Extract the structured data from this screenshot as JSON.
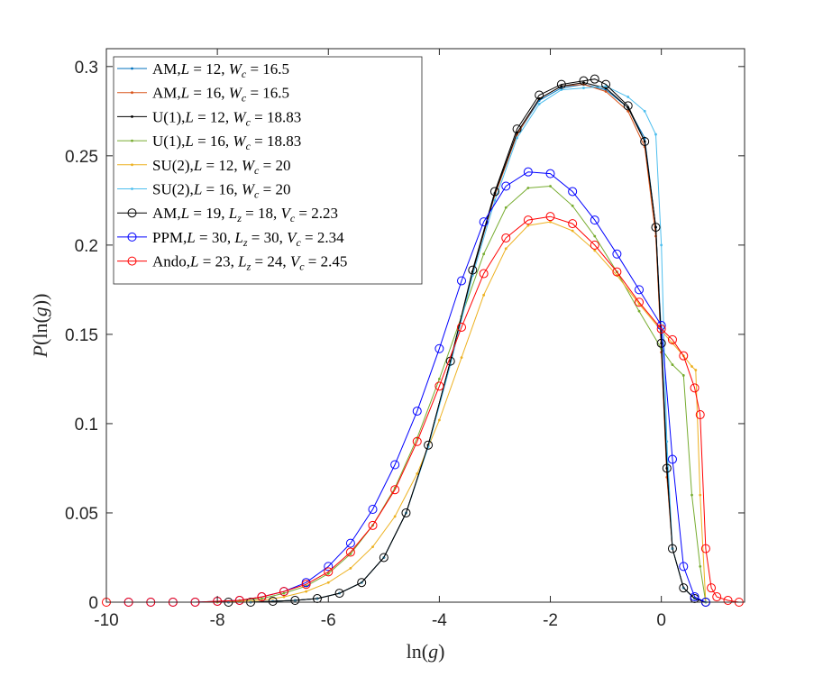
{
  "chart_data": {
    "type": "line",
    "title": "",
    "xlabel": "ln(g)",
    "ylabel": "P(ln(g))",
    "xlim": [
      -10,
      1.5
    ],
    "ylim": [
      0,
      0.31
    ],
    "xticks": [
      -10,
      -8,
      -6,
      -4,
      -2,
      0
    ],
    "xtick_labels": [
      "-10",
      "-8",
      "-6",
      "-4",
      "-2",
      "0"
    ],
    "yticks": [
      0,
      0.05,
      0.1,
      0.15,
      0.2,
      0.25,
      0.3
    ],
    "ytick_labels": [
      "0",
      "0.05",
      "0.1",
      "0.15",
      "0.2",
      "0.25",
      "0.3"
    ],
    "grid": false,
    "legend_position": "top-left",
    "series": [
      {
        "name": "AM,L = 12, W_c = 16.5",
        "label_parts": [
          [
            "AM,",
            "r"
          ],
          [
            "L",
            "i"
          ],
          [
            " = 12, ",
            "r"
          ],
          [
            "W",
            "i"
          ],
          [
            "c",
            "sub"
          ],
          [
            " = 16.5",
            "r"
          ]
        ],
        "color": "#0072BD",
        "marker": "dot",
        "x": [
          -7.8,
          -7.4,
          -7.0,
          -6.6,
          -6.2,
          -5.8,
          -5.4,
          -5.0,
          -4.6,
          -4.2,
          -3.8,
          -3.4,
          -3.0,
          -2.6,
          -2.2,
          -1.8,
          -1.4,
          -1.0,
          -0.6,
          -0.3,
          -0.1,
          0.0,
          0.1,
          0.2,
          0.4,
          0.6,
          0.8
        ],
        "y": [
          0.0,
          0.0,
          0.0005,
          0.001,
          0.002,
          0.005,
          0.011,
          0.025,
          0.05,
          0.088,
          0.135,
          0.185,
          0.228,
          0.262,
          0.281,
          0.288,
          0.29,
          0.287,
          0.277,
          0.26,
          0.21,
          0.15,
          0.08,
          0.03,
          0.008,
          0.002,
          0.0
        ]
      },
      {
        "name": "AM,L = 16, W_c = 16.5",
        "label_parts": [
          [
            "AM,",
            "r"
          ],
          [
            "L",
            "i"
          ],
          [
            " = 16, ",
            "r"
          ],
          [
            "W",
            "i"
          ],
          [
            "c",
            "sub"
          ],
          [
            " = 16.5",
            "r"
          ]
        ],
        "color": "#D95319",
        "marker": "dot",
        "x": [
          -7.8,
          -7.4,
          -7.0,
          -6.6,
          -6.2,
          -5.8,
          -5.4,
          -5.0,
          -4.6,
          -4.2,
          -3.8,
          -3.4,
          -3.0,
          -2.6,
          -2.2,
          -1.8,
          -1.4,
          -1.0,
          -0.6,
          -0.3,
          -0.1,
          0.0,
          0.1,
          0.2,
          0.4,
          0.6,
          0.8
        ],
        "y": [
          0.0,
          0.0,
          0.0005,
          0.001,
          0.002,
          0.005,
          0.011,
          0.025,
          0.05,
          0.088,
          0.135,
          0.185,
          0.228,
          0.262,
          0.282,
          0.289,
          0.29,
          0.286,
          0.275,
          0.255,
          0.205,
          0.14,
          0.07,
          0.03,
          0.008,
          0.002,
          0.0
        ]
      },
      {
        "name": "U(1),L = 12, W_c = 18.83",
        "label_parts": [
          [
            "U(1),",
            "r"
          ],
          [
            "L",
            "i"
          ],
          [
            " = 12, ",
            "r"
          ],
          [
            "W",
            "i"
          ],
          [
            "c",
            "sub"
          ],
          [
            " = 18.83",
            "r"
          ]
        ],
        "color": "#000000",
        "marker": "dot",
        "x": [
          -7.8,
          -7.4,
          -7.0,
          -6.6,
          -6.2,
          -5.8,
          -5.4,
          -5.0,
          -4.6,
          -4.2,
          -3.8,
          -3.4,
          -3.0,
          -2.6,
          -2.2,
          -1.8,
          -1.4,
          -1.0,
          -0.6,
          -0.3,
          -0.1,
          0.0,
          0.1,
          0.2,
          0.4,
          0.6,
          0.8
        ],
        "y": [
          0.0,
          0.0,
          0.0005,
          0.001,
          0.002,
          0.005,
          0.011,
          0.025,
          0.05,
          0.088,
          0.135,
          0.185,
          0.229,
          0.263,
          0.282,
          0.289,
          0.291,
          0.288,
          0.277,
          0.258,
          0.21,
          0.145,
          0.075,
          0.03,
          0.008,
          0.002,
          0.0
        ]
      },
      {
        "name": "U(1),L = 16, W_c = 18.83",
        "label_parts": [
          [
            "U(1),",
            "r"
          ],
          [
            "L",
            "i"
          ],
          [
            " = 16, ",
            "r"
          ],
          [
            "W",
            "i"
          ],
          [
            "c",
            "sub"
          ],
          [
            " = 18.83",
            "r"
          ]
        ],
        "color": "#77AC30",
        "marker": "dot",
        "x": [
          -8.0,
          -7.6,
          -7.2,
          -6.8,
          -6.4,
          -6.0,
          -5.6,
          -5.2,
          -4.8,
          -4.4,
          -4.0,
          -3.6,
          -3.2,
          -2.8,
          -2.4,
          -2.0,
          -1.6,
          -1.2,
          -0.8,
          -0.4,
          0.0,
          0.2,
          0.4,
          0.55,
          0.7,
          0.8
        ],
        "y": [
          0.0,
          0.001,
          0.002,
          0.005,
          0.009,
          0.016,
          0.027,
          0.043,
          0.064,
          0.092,
          0.125,
          0.16,
          0.195,
          0.221,
          0.232,
          0.233,
          0.222,
          0.205,
          0.185,
          0.163,
          0.142,
          0.133,
          0.127,
          0.06,
          0.02,
          0.0
        ]
      },
      {
        "name": "SU(2),L = 12, W_c = 20",
        "label_parts": [
          [
            "SU(2),",
            "r"
          ],
          [
            "L",
            "i"
          ],
          [
            " = 12, ",
            "r"
          ],
          [
            "W",
            "i"
          ],
          [
            "c",
            "sub"
          ],
          [
            " = 20",
            "r"
          ]
        ],
        "color": "#EDB120",
        "marker": "dot",
        "x": [
          -8.0,
          -7.6,
          -7.2,
          -6.8,
          -6.4,
          -6.0,
          -5.6,
          -5.2,
          -4.8,
          -4.4,
          -4.0,
          -3.6,
          -3.2,
          -2.8,
          -2.4,
          -2.0,
          -1.6,
          -1.2,
          -0.8,
          -0.4,
          0.0,
          0.2,
          0.4,
          0.55,
          0.62,
          0.7,
          0.8
        ],
        "y": [
          0.0,
          0.0005,
          0.001,
          0.003,
          0.006,
          0.011,
          0.019,
          0.031,
          0.048,
          0.072,
          0.102,
          0.137,
          0.172,
          0.198,
          0.211,
          0.213,
          0.208,
          0.197,
          0.183,
          0.167,
          0.152,
          0.145,
          0.138,
          0.132,
          0.13,
          0.06,
          0.0
        ]
      },
      {
        "name": "SU(2),L = 16, W_c = 20",
        "label_parts": [
          [
            "SU(2),",
            "r"
          ],
          [
            "L",
            "i"
          ],
          [
            " = 16, ",
            "r"
          ],
          [
            "W",
            "i"
          ],
          [
            "c",
            "sub"
          ],
          [
            " = 20",
            "r"
          ]
        ],
        "color": "#4DBEEE",
        "marker": "dot",
        "x": [
          -7.8,
          -7.4,
          -7.0,
          -6.6,
          -6.2,
          -5.8,
          -5.4,
          -5.0,
          -4.6,
          -4.2,
          -3.8,
          -3.4,
          -3.0,
          -2.6,
          -2.2,
          -1.8,
          -1.4,
          -1.0,
          -0.6,
          -0.3,
          -0.1,
          0.0,
          0.1,
          0.2,
          0.4,
          0.6,
          0.8
        ],
        "y": [
          0.0,
          0.0,
          0.0005,
          0.001,
          0.002,
          0.005,
          0.011,
          0.025,
          0.05,
          0.087,
          0.133,
          0.183,
          0.225,
          0.26,
          0.279,
          0.287,
          0.288,
          0.289,
          0.283,
          0.275,
          0.262,
          0.2,
          0.09,
          0.03,
          0.008,
          0.002,
          0.0
        ]
      },
      {
        "name": "AM,L = 19, L_z = 18, V_c = 2.23",
        "label_parts": [
          [
            "AM,",
            "r"
          ],
          [
            "L",
            "i"
          ],
          [
            " = 19, ",
            "r"
          ],
          [
            "L",
            "i"
          ],
          [
            "z",
            "sub"
          ],
          [
            " = 18, ",
            "r"
          ],
          [
            "V",
            "i"
          ],
          [
            "c",
            "sub"
          ],
          [
            " = 2.23",
            "r"
          ]
        ],
        "color": "#000000",
        "marker": "circle",
        "x": [
          -7.8,
          -7.4,
          -7.0,
          -6.6,
          -6.2,
          -5.8,
          -5.4,
          -5.0,
          -4.6,
          -4.2,
          -3.8,
          -3.4,
          -3.0,
          -2.6,
          -2.2,
          -1.8,
          -1.4,
          -1.2,
          -1.0,
          -0.6,
          -0.3,
          -0.1,
          0.0,
          0.1,
          0.2,
          0.4,
          0.6,
          0.8
        ],
        "y": [
          0.0,
          0.0,
          0.0005,
          0.001,
          0.002,
          0.005,
          0.011,
          0.025,
          0.05,
          0.088,
          0.135,
          0.186,
          0.23,
          0.265,
          0.284,
          0.29,
          0.292,
          0.293,
          0.29,
          0.278,
          0.258,
          0.21,
          0.145,
          0.075,
          0.03,
          0.008,
          0.002,
          0.0
        ]
      },
      {
        "name": "PPM,L = 30, L_z = 30, V_c = 2.34",
        "label_parts": [
          [
            "PPM,",
            "r"
          ],
          [
            "L",
            "i"
          ],
          [
            " = 30, ",
            "r"
          ],
          [
            "L",
            "i"
          ],
          [
            "z",
            "sub"
          ],
          [
            " = 30, ",
            "r"
          ],
          [
            "V",
            "i"
          ],
          [
            "c",
            "sub"
          ],
          [
            " = 2.34",
            "r"
          ]
        ],
        "color": "#0000FF",
        "marker": "circle",
        "x": [
          -9.6,
          -9.2,
          -8.8,
          -8.4,
          -8.0,
          -7.6,
          -7.2,
          -6.8,
          -6.4,
          -6.0,
          -5.6,
          -5.2,
          -4.8,
          -4.4,
          -4.0,
          -3.6,
          -3.2,
          -2.8,
          -2.4,
          -2.0,
          -1.6,
          -1.2,
          -0.8,
          -0.4,
          0.0,
          0.2,
          0.4,
          0.6,
          0.8
        ],
        "y": [
          0.0,
          0.0,
          0.0,
          0.0,
          0.0005,
          0.001,
          0.003,
          0.006,
          0.011,
          0.02,
          0.033,
          0.052,
          0.077,
          0.107,
          0.142,
          0.18,
          0.213,
          0.233,
          0.241,
          0.24,
          0.23,
          0.214,
          0.195,
          0.175,
          0.155,
          0.08,
          0.02,
          0.003,
          0.0
        ]
      },
      {
        "name": "Ando,L = 23, L_z = 24, V_c = 2.45",
        "label_parts": [
          [
            "Ando,",
            "r"
          ],
          [
            "L",
            "i"
          ],
          [
            " = 23, ",
            "r"
          ],
          [
            "L",
            "i"
          ],
          [
            "z",
            "sub"
          ],
          [
            " = 24, ",
            "r"
          ],
          [
            "V",
            "i"
          ],
          [
            "c",
            "sub"
          ],
          [
            " = 2.45",
            "r"
          ]
        ],
        "color": "#FF0000",
        "marker": "circle",
        "x": [
          -10.0,
          -9.6,
          -9.2,
          -8.8,
          -8.4,
          -8.0,
          -7.6,
          -7.2,
          -6.8,
          -6.4,
          -6.0,
          -5.6,
          -5.2,
          -4.8,
          -4.4,
          -4.0,
          -3.6,
          -3.2,
          -2.8,
          -2.4,
          -2.0,
          -1.6,
          -1.2,
          -0.8,
          -0.4,
          0.0,
          0.2,
          0.4,
          0.6,
          0.7,
          0.8,
          0.9,
          1.0,
          1.2,
          1.4
        ],
        "y": [
          0.0,
          0.0,
          0.0,
          0.0,
          0.0,
          0.0005,
          0.001,
          0.003,
          0.006,
          0.01,
          0.017,
          0.028,
          0.043,
          0.063,
          0.09,
          0.121,
          0.154,
          0.184,
          0.204,
          0.214,
          0.216,
          0.212,
          0.2,
          0.185,
          0.168,
          0.153,
          0.147,
          0.138,
          0.12,
          0.105,
          0.03,
          0.008,
          0.003,
          0.001,
          0.0
        ]
      }
    ]
  }
}
